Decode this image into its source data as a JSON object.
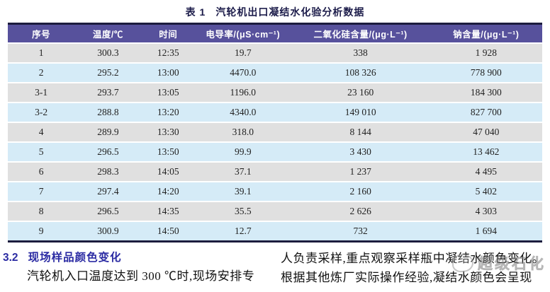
{
  "table": {
    "caption_label": "表 1",
    "caption_title": "汽轮机出口凝结水化验分析数据",
    "columns": [
      "序号",
      "温度/℃",
      "时间",
      "电导率/(μS·cm⁻¹)",
      "二氧化硅含量/(μg·L⁻¹)",
      "钠含量/(μg·L⁻¹)"
    ],
    "rows": [
      [
        "1",
        "300.3",
        "12:35",
        "19.7",
        "338",
        "1 928"
      ],
      [
        "2",
        "295.2",
        "13:00",
        "4470.0",
        "108 326",
        "778 900"
      ],
      [
        "3-1",
        "293.7",
        "13:05",
        "1196.0",
        "23 160",
        "184 300"
      ],
      [
        "3-2",
        "288.8",
        "13:20",
        "4340.0",
        "149 010",
        "827 700"
      ],
      [
        "4",
        "289.9",
        "13:30",
        "318.0",
        "8 144",
        "47 040"
      ],
      [
        "5",
        "296.5",
        "13:50",
        "99.9",
        "3 430",
        "13 462"
      ],
      [
        "6",
        "298.3",
        "14:05",
        "37.1",
        "1 237",
        "4 495"
      ],
      [
        "7",
        "297.4",
        "14:20",
        "39.1",
        "2 160",
        "5 402"
      ],
      [
        "8",
        "296.5",
        "14:35",
        "35.5",
        "2 626",
        "4 303"
      ],
      [
        "9",
        "300.9",
        "14:50",
        "12.7",
        "732",
        "1 694"
      ]
    ]
  },
  "section": {
    "heading_number": "3.2",
    "heading_title": "现场样品颜色变化",
    "left_paragraph": "汽轮机入口温度达到 300 ℃时,现场安排专",
    "right_line1": "人负责采样,重点观察采样瓶中凝结水颜色变化。",
    "right_line2": "根据其他炼厂实际操作经验,凝结水颜色会呈现"
  },
  "watermark": {
    "text": "超级石化"
  },
  "colors": {
    "header-bg": "#57519c",
    "header-text": "#ffffff",
    "row-gray": "#e0e0e0",
    "row-blue": "#d5ebf7",
    "border-dark": "#1c1c3e",
    "caption-color": "#1c1c4a",
    "heading-color": "#2b2ba3",
    "body-color": "#111111"
  }
}
